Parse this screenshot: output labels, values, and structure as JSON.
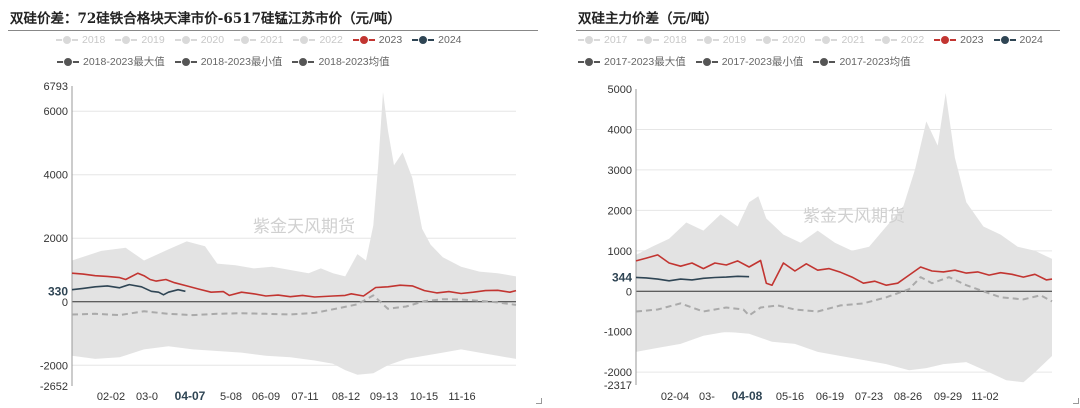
{
  "panels": [
    {
      "title": "双硅价差：72硅铁合格块天津市价-6517硅锰江苏市价（元/吨）",
      "legend_row1": [
        {
          "label": "2018",
          "color": "#d9d9d9",
          "faded": true
        },
        {
          "label": "2019",
          "color": "#d9d9d9",
          "faded": true
        },
        {
          "label": "2020",
          "color": "#d9d9d9",
          "faded": true
        },
        {
          "label": "2021",
          "color": "#d9d9d9",
          "faded": true
        },
        {
          "label": "2022",
          "color": "#d9d9d9",
          "faded": true
        },
        {
          "label": "2023",
          "color": "#c23531",
          "faded": false
        },
        {
          "label": "2024",
          "color": "#2f4554",
          "faded": false
        }
      ],
      "legend_row2": [
        {
          "label": "2018-2023最大值",
          "color": "#555555",
          "faded": false
        },
        {
          "label": "2018-2023最小值",
          "color": "#555555",
          "faded": false
        },
        {
          "label": "2018-2023均值",
          "color": "#555555",
          "faded": false
        }
      ]
    },
    {
      "title": "双硅主力价差（元/吨）",
      "legend_row1": [
        {
          "label": "2017",
          "color": "#d9d9d9",
          "faded": true
        },
        {
          "label": "2018",
          "color": "#d9d9d9",
          "faded": true
        },
        {
          "label": "2019",
          "color": "#d9d9d9",
          "faded": true
        },
        {
          "label": "2020",
          "color": "#d9d9d9",
          "faded": true
        },
        {
          "label": "2021",
          "color": "#d9d9d9",
          "faded": true
        },
        {
          "label": "2022",
          "color": "#d9d9d9",
          "faded": true
        },
        {
          "label": "2023",
          "color": "#c23531",
          "faded": false
        },
        {
          "label": "2024",
          "color": "#2f4554",
          "faded": false
        }
      ],
      "legend_row2": [
        {
          "label": "2017-2023最大值",
          "color": "#555555",
          "faded": false
        },
        {
          "label": "2017-2023最小值",
          "color": "#555555",
          "faded": false
        },
        {
          "label": "2017-2023均值",
          "color": "#555555",
          "faded": false
        }
      ]
    }
  ],
  "chart_data": [
    {
      "type": "area",
      "title": "双硅价差：72硅铁合格块天津市价-6517硅锰江苏市价（元/吨）",
      "watermark": "紫金天风期货",
      "ylim": [
        -2652,
        6793
      ],
      "y_ticks": [
        "6793",
        "6000",
        "4000",
        "2000",
        "0",
        "-2000",
        "-2652"
      ],
      "x_ticks": [
        "02-02",
        "03-0",
        "04-07",
        "5-08",
        "06-09",
        "07-11",
        "08-12",
        "09-13",
        "10-15",
        "11-16"
      ],
      "x_pointer_label": "04-07",
      "y_pointer_label": "330",
      "x_domain": [
        1,
        365
      ],
      "band_top": [
        [
          1,
          1300
        ],
        [
          25,
          1600
        ],
        [
          45,
          1700
        ],
        [
          60,
          1300
        ],
        [
          80,
          1650
        ],
        [
          95,
          1900
        ],
        [
          110,
          1750
        ],
        [
          120,
          1200
        ],
        [
          135,
          1150
        ],
        [
          150,
          1050
        ],
        [
          165,
          1100
        ],
        [
          180,
          1000
        ],
        [
          195,
          900
        ],
        [
          205,
          1050
        ],
        [
          215,
          900
        ],
        [
          225,
          800
        ],
        [
          235,
          1500
        ],
        [
          242,
          1300
        ],
        [
          248,
          2400
        ],
        [
          252,
          4300
        ],
        [
          256,
          6600
        ],
        [
          260,
          5400
        ],
        [
          265,
          4300
        ],
        [
          272,
          4700
        ],
        [
          280,
          3900
        ],
        [
          288,
          2300
        ],
        [
          295,
          1800
        ],
        [
          305,
          1400
        ],
        [
          320,
          1100
        ],
        [
          335,
          950
        ],
        [
          350,
          900
        ],
        [
          365,
          800
        ]
      ],
      "band_bottom": [
        [
          1,
          -1700
        ],
        [
          20,
          -1800
        ],
        [
          40,
          -1750
        ],
        [
          60,
          -1500
        ],
        [
          80,
          -1400
        ],
        [
          100,
          -1500
        ],
        [
          120,
          -1550
        ],
        [
          140,
          -1600
        ],
        [
          160,
          -1700
        ],
        [
          180,
          -1750
        ],
        [
          200,
          -1850
        ],
        [
          215,
          -1950
        ],
        [
          225,
          -2150
        ],
        [
          235,
          -2300
        ],
        [
          248,
          -2250
        ],
        [
          260,
          -2000
        ],
        [
          275,
          -1800
        ],
        [
          290,
          -1700
        ],
        [
          305,
          -1600
        ],
        [
          320,
          -1500
        ],
        [
          335,
          -1600
        ],
        [
          350,
          -1700
        ],
        [
          365,
          -1800
        ]
      ],
      "series": [
        {
          "name": "2023",
          "color": "#c23531",
          "values": [
            [
              1,
              900
            ],
            [
              10,
              870
            ],
            [
              20,
              820
            ],
            [
              30,
              800
            ],
            [
              40,
              760
            ],
            [
              45,
              700
            ],
            [
              55,
              900
            ],
            [
              60,
              820
            ],
            [
              65,
              700
            ],
            [
              70,
              650
            ],
            [
              78,
              700
            ],
            [
              85,
              600
            ],
            [
              95,
              500
            ],
            [
              105,
              400
            ],
            [
              115,
              300
            ],
            [
              125,
              320
            ],
            [
              130,
              200
            ],
            [
              140,
              300
            ],
            [
              150,
              250
            ],
            [
              160,
              180
            ],
            [
              170,
              210
            ],
            [
              180,
              160
            ],
            [
              190,
              200
            ],
            [
              200,
              150
            ],
            [
              215,
              180
            ],
            [
              225,
              200
            ],
            [
              230,
              250
            ],
            [
              240,
              180
            ],
            [
              250,
              450
            ],
            [
              260,
              470
            ],
            [
              270,
              520
            ],
            [
              280,
              500
            ],
            [
              290,
              350
            ],
            [
              300,
              280
            ],
            [
              310,
              320
            ],
            [
              320,
              260
            ],
            [
              330,
              300
            ],
            [
              340,
              350
            ],
            [
              350,
              360
            ],
            [
              360,
              300
            ],
            [
              365,
              350
            ]
          ]
        },
        {
          "name": "2024",
          "color": "#2f4554",
          "values": [
            [
              1,
              380
            ],
            [
              10,
              420
            ],
            [
              20,
              470
            ],
            [
              30,
              500
            ],
            [
              40,
              440
            ],
            [
              48,
              540
            ],
            [
              58,
              470
            ],
            [
              66,
              330
            ],
            [
              72,
              300
            ],
            [
              76,
              220
            ],
            [
              80,
              300
            ],
            [
              88,
              380
            ],
            [
              94,
              330
            ]
          ]
        },
        {
          "name": "2018-2023均值",
          "color": "#aaaaaa",
          "dashed": true,
          "values": [
            [
              1,
              -400
            ],
            [
              20,
              -380
            ],
            [
              40,
              -420
            ],
            [
              60,
              -300
            ],
            [
              80,
              -380
            ],
            [
              100,
              -420
            ],
            [
              120,
              -380
            ],
            [
              140,
              -360
            ],
            [
              160,
              -380
            ],
            [
              180,
              -400
            ],
            [
              200,
              -350
            ],
            [
              220,
              -200
            ],
            [
              235,
              -80
            ],
            [
              248,
              200
            ],
            [
              260,
              -220
            ],
            [
              275,
              -150
            ],
            [
              290,
              20
            ],
            [
              305,
              80
            ],
            [
              320,
              70
            ],
            [
              335,
              30
            ],
            [
              350,
              -20
            ],
            [
              365,
              -100
            ]
          ]
        }
      ]
    },
    {
      "type": "area",
      "title": "双硅主力价差（元/吨）",
      "watermark": "紫金天风期货",
      "ylim": [
        -2317,
        5000
      ],
      "y_ticks": [
        "5000",
        "4000",
        "3000",
        "2000",
        "1000",
        "0",
        "-1000",
        "-2000",
        "-2317"
      ],
      "x_ticks": [
        "02-04",
        "03-",
        "04-08",
        "05-16",
        "06-19",
        "07-23",
        "08-26",
        "09-29",
        "11-02"
      ],
      "x_pointer_label": "04-08",
      "y_pointer_label": "344",
      "x_domain": [
        1,
        365
      ],
      "band_top": [
        [
          1,
          900
        ],
        [
          15,
          1100
        ],
        [
          30,
          1300
        ],
        [
          45,
          1700
        ],
        [
          60,
          1500
        ],
        [
          75,
          1900
        ],
        [
          90,
          1600
        ],
        [
          100,
          2200
        ],
        [
          108,
          2350
        ],
        [
          115,
          1800
        ],
        [
          130,
          1400
        ],
        [
          145,
          1200
        ],
        [
          160,
          1500
        ],
        [
          175,
          1200
        ],
        [
          190,
          1000
        ],
        [
          205,
          1100
        ],
        [
          220,
          1600
        ],
        [
          235,
          2100
        ],
        [
          245,
          3000
        ],
        [
          255,
          4200
        ],
        [
          265,
          3600
        ],
        [
          272,
          4900
        ],
        [
          280,
          3300
        ],
        [
          290,
          2200
        ],
        [
          305,
          1600
        ],
        [
          320,
          1400
        ],
        [
          335,
          1100
        ],
        [
          350,
          1000
        ],
        [
          365,
          800
        ]
      ],
      "band_bottom": [
        [
          1,
          -1500
        ],
        [
          20,
          -1400
        ],
        [
          40,
          -1300
        ],
        [
          60,
          -1100
        ],
        [
          80,
          -1000
        ],
        [
          100,
          -1050
        ],
        [
          120,
          -1250
        ],
        [
          140,
          -1300
        ],
        [
          160,
          -1500
        ],
        [
          180,
          -1600
        ],
        [
          200,
          -1700
        ],
        [
          220,
          -1800
        ],
        [
          240,
          -1950
        ],
        [
          255,
          -1900
        ],
        [
          270,
          -1800
        ],
        [
          290,
          -1750
        ],
        [
          310,
          -2000
        ],
        [
          325,
          -2200
        ],
        [
          340,
          -2250
        ],
        [
          350,
          -2000
        ],
        [
          365,
          -1600
        ]
      ],
      "series": [
        {
          "name": "2023",
          "color": "#c23531",
          "values": [
            [
              1,
              750
            ],
            [
              10,
              820
            ],
            [
              20,
              900
            ],
            [
              30,
              700
            ],
            [
              40,
              620
            ],
            [
              50,
              700
            ],
            [
              60,
              560
            ],
            [
              70,
              700
            ],
            [
              80,
              650
            ],
            [
              90,
              750
            ],
            [
              100,
              600
            ],
            [
              110,
              760
            ],
            [
              115,
              200
            ],
            [
              120,
              150
            ],
            [
              130,
              700
            ],
            [
              140,
              500
            ],
            [
              150,
              680
            ],
            [
              160,
              520
            ],
            [
              170,
              560
            ],
            [
              180,
              470
            ],
            [
              190,
              350
            ],
            [
              200,
              200
            ],
            [
              210,
              250
            ],
            [
              220,
              150
            ],
            [
              230,
              200
            ],
            [
              240,
              400
            ],
            [
              250,
              600
            ],
            [
              260,
              500
            ],
            [
              270,
              480
            ],
            [
              280,
              520
            ],
            [
              290,
              450
            ],
            [
              300,
              480
            ],
            [
              310,
              400
            ],
            [
              320,
              460
            ],
            [
              330,
              420
            ],
            [
              340,
              350
            ],
            [
              350,
              420
            ],
            [
              360,
              280
            ],
            [
              365,
              300
            ]
          ]
        },
        {
          "name": "2024",
          "color": "#2f4554",
          "values": [
            [
              1,
              344
            ],
            [
              10,
              330
            ],
            [
              20,
              300
            ],
            [
              30,
              260
            ],
            [
              40,
              300
            ],
            [
              50,
              280
            ],
            [
              60,
              320
            ],
            [
              70,
              340
            ],
            [
              80,
              350
            ],
            [
              90,
              370
            ],
            [
              100,
              360
            ]
          ]
        },
        {
          "name": "2017-2023均值",
          "color": "#aaaaaa",
          "dashed": true,
          "values": [
            [
              1,
              -500
            ],
            [
              20,
              -450
            ],
            [
              40,
              -300
            ],
            [
              60,
              -500
            ],
            [
              80,
              -400
            ],
            [
              95,
              -450
            ],
            [
              100,
              -600
            ],
            [
              110,
              -400
            ],
            [
              125,
              -350
            ],
            [
              140,
              -450
            ],
            [
              160,
              -500
            ],
            [
              180,
              -350
            ],
            [
              200,
              -300
            ],
            [
              220,
              -150
            ],
            [
              240,
              50
            ],
            [
              250,
              350
            ],
            [
              260,
              200
            ],
            [
              275,
              350
            ],
            [
              290,
              150
            ],
            [
              305,
              0
            ],
            [
              320,
              -150
            ],
            [
              340,
              -200
            ],
            [
              355,
              -100
            ],
            [
              365,
              -250
            ]
          ]
        }
      ]
    }
  ]
}
